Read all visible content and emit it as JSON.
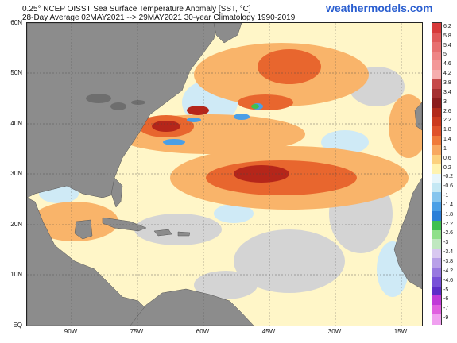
{
  "header": {
    "title_line1": "0.25° NCEP OISST Sea Surface Temperature Anomaly [SST, °C]",
    "title_line2": "28-Day Average 02MAY2021 --> 29MAY2021   30-year Climatology 1990-2019",
    "brand": "weathermodels.com"
  },
  "map": {
    "latitude_labels": [
      "60N",
      "50N",
      "40N",
      "30N",
      "20N",
      "10N",
      "EQ"
    ],
    "longitude_labels": [
      "90W",
      "75W",
      "60W",
      "45W",
      "30W",
      "15W"
    ],
    "land_color": "#8c8c8c",
    "neutral_ocean_color": "#d9d9d9"
  },
  "colorbar": {
    "labels": [
      "6.2",
      "5.8",
      "5.4",
      "5",
      "4.6",
      "4.2",
      "3.8",
      "3.4",
      "3",
      "2.6",
      "2.2",
      "1.8",
      "1.4",
      "1",
      "0.6",
      "0.2",
      "-0.2",
      "-0.6",
      "-1",
      "-1.4",
      "-1.8",
      "-2.2",
      "-2.6",
      "-3",
      "-3.4",
      "-3.8",
      "-4.2",
      "-4.6",
      "-5",
      "-6",
      "-7",
      "-9"
    ],
    "colors": [
      "#d73a3a",
      "#e05a5a",
      "#e77070",
      "#ee8585",
      "#f39999",
      "#f6aeae",
      "#c64a4a",
      "#a53030",
      "#8c1c1c",
      "#b22a1a",
      "#cc3a1e",
      "#e0522a",
      "#f07a3a",
      "#f8a860",
      "#fcd17e",
      "#fff3b0",
      "#e8f6fb",
      "#c5e8f4",
      "#86c5ee",
      "#4a9fe6",
      "#2b7fd8",
      "#3fc050",
      "#8fe08a",
      "#c0e8c0",
      "#d8c8f0",
      "#b8a0e8",
      "#9878e0",
      "#7850d8",
      "#5c2cc8",
      "#c03ad8",
      "#e060e0",
      "#f0a0f0"
    ]
  }
}
